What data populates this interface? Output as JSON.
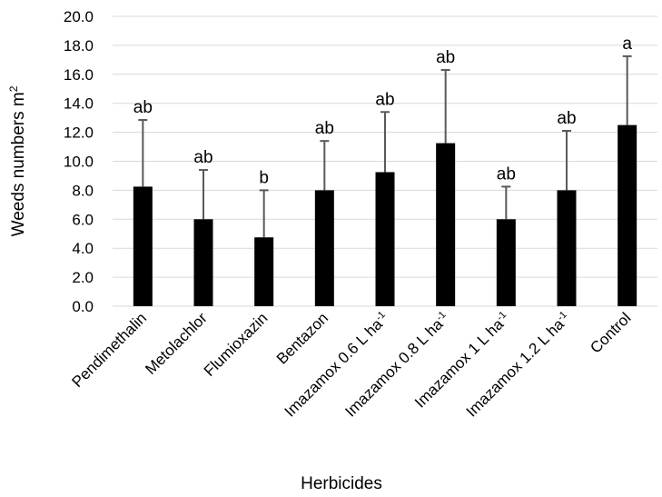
{
  "chart_data": {
    "type": "bar",
    "categories": [
      {
        "base": "Pendimethalin",
        "unit": "",
        "sup": ""
      },
      {
        "base": "Metolachlor",
        "unit": "",
        "sup": ""
      },
      {
        "base": "Flumioxazin",
        "unit": "",
        "sup": ""
      },
      {
        "base": "Bentazon",
        "unit": "",
        "sup": ""
      },
      {
        "base": "Imazamox 0.6 L ",
        "unit": "ha",
        "sup": "-1"
      },
      {
        "base": "Imazamox 0.8 L ",
        "unit": "ha",
        "sup": "-1"
      },
      {
        "base": "Imazamox 1 L ",
        "unit": "ha",
        "sup": "-1"
      },
      {
        "base": "Imazamox  1.2 L ",
        "unit": "ha",
        "sup": "-1"
      },
      {
        "base": "Control",
        "unit": "",
        "sup": ""
      }
    ],
    "values": [
      8.25,
      6.0,
      4.75,
      8.0,
      9.25,
      11.25,
      6.0,
      8.0,
      12.5
    ],
    "errors": [
      4.6,
      3.4,
      3.25,
      3.4,
      4.15,
      5.05,
      2.25,
      4.1,
      4.75
    ],
    "significance": [
      "ab",
      "ab",
      "b",
      "ab",
      "ab",
      "ab",
      "ab",
      "ab",
      "a"
    ],
    "ylabel": {
      "base": "Weeds numbers m",
      "sup": "2"
    },
    "xlabel": "Herbicides",
    "ylim": [
      0,
      20
    ],
    "yticks": [
      "0.0",
      "2.0",
      "4.0",
      "6.0",
      "8.0",
      "10.0",
      "12.0",
      "14.0",
      "16.0",
      "18.0",
      "20.0"
    ],
    "grid": true,
    "legend": "none",
    "bar_color": "#000000",
    "error_color": "#595959"
  }
}
